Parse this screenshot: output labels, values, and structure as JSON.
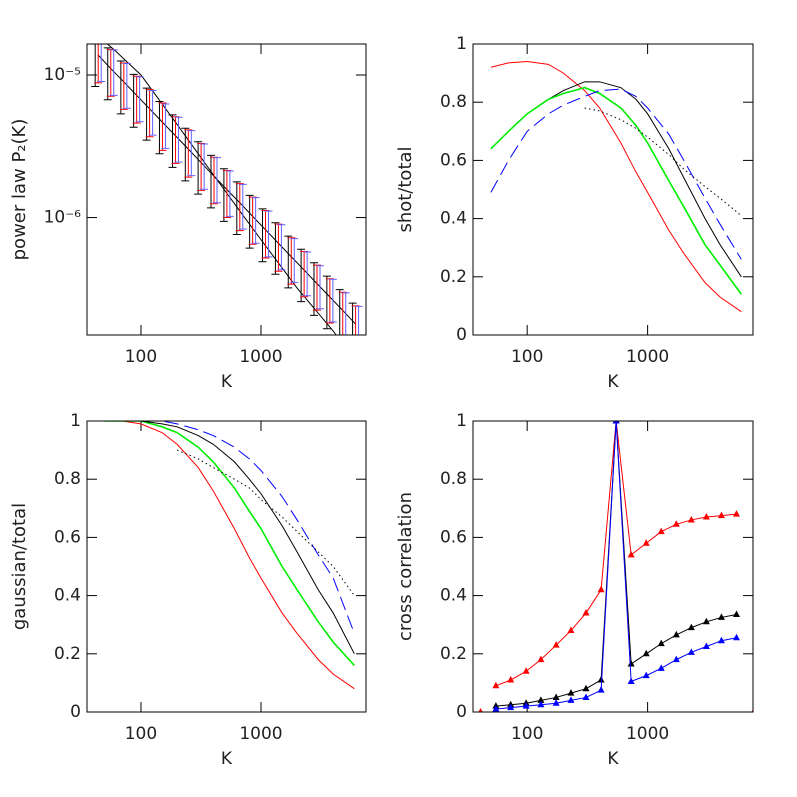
{
  "chart_data": [
    {
      "type": "line",
      "xlabel": "K",
      "ylabel": "power law P₂(K)",
      "xscale": "log",
      "yscale": "log",
      "xlim": [
        35.5,
        7500
      ],
      "ylim": [
        1.5e-07,
        1.65e-05
      ],
      "xticks": [
        100,
        1000
      ],
      "yticks": [
        {
          "value": 1e-05,
          "label": "10⁻⁵"
        },
        {
          "value": 1e-06,
          "label": "10⁻⁶"
        }
      ],
      "x": [
        44,
        56,
        72,
        92,
        118,
        151,
        194,
        248,
        317,
        406,
        520,
        666,
        852,
        1091,
        1397,
        1788,
        2288,
        2929,
        3749,
        4799,
        6143
      ],
      "series": [
        {
          "color": "#000000",
          "style": "line",
          "values": [
            1.38e-05,
            1.11e-05,
            8.94e-06,
            7.2e-06,
            5.79e-06,
            4.66e-06,
            3.75e-06,
            3.02e-06,
            2.43e-06,
            1.95e-06,
            1.57e-06,
            1.27e-06,
            1.02e-06,
            8.2e-07,
            6.6e-07,
            5.31e-07,
            4.28e-07,
            3.44e-07,
            2.77e-07,
            2.23e-07,
            1.79e-07
          ]
        },
        {
          "color": "#000000",
          "style": "line",
          "x": [
            40,
            60,
            100,
            200,
            400,
            700,
            1000,
            2000,
            4000,
            6000
          ],
          "values": [
            2e-05,
            1.5e-05,
            1e-05,
            4.5e-06,
            2e-06,
            1.05e-06,
            7e-07,
            3.2e-07,
            1.6e-07,
            1e-07
          ]
        },
        {
          "color": "#000000",
          "style": "errorbar",
          "values": [
            1.38e-05,
            1.11e-05,
            8.94e-06,
            7.2e-06,
            5.79e-06,
            4.66e-06,
            3.75e-06,
            3.02e-06,
            2.43e-06,
            1.95e-06,
            1.57e-06,
            1.27e-06,
            1.02e-06,
            8.2e-07,
            6.6e-07,
            5.31e-07,
            4.28e-07,
            3.44e-07,
            2.77e-07,
            2.23e-07,
            1.79e-07
          ],
          "yerr": [
            5.5e-06,
            4.4e-06,
            3.6e-06,
            2.9e-06,
            2.3e-06,
            1.86e-06,
            1.5e-06,
            1.21e-06,
            9.7e-07,
            7.8e-07,
            6.3e-07,
            5.1e-07,
            4.1e-07,
            3.3e-07,
            2.6e-07,
            2.1e-07,
            1.71e-07,
            1.38e-07,
            1.11e-07,
            8.9e-08,
            7.2e-08
          ]
        },
        {
          "color": "#ff0000",
          "style": "errorbar",
          "values": [
            1.38e-05,
            1.11e-05,
            8.94e-06,
            7.2e-06,
            5.79e-06,
            4.66e-06,
            3.75e-06,
            3.02e-06,
            2.43e-06,
            1.95e-06,
            1.57e-06,
            1.27e-06,
            1.02e-06,
            8.2e-07,
            6.6e-07,
            5.31e-07,
            4.28e-07,
            3.44e-07,
            2.77e-07,
            2.23e-07,
            1.79e-07
          ],
          "yerr": [
            5e-06,
            4e-06,
            3.2e-06,
            2.6e-06,
            2.1e-06,
            1.7e-06,
            1.35e-06,
            1.1e-06,
            8.8e-07,
            7e-07,
            5.7e-07,
            4.6e-07,
            3.7e-07,
            3e-07,
            2.4e-07,
            1.9e-07,
            1.5e-07,
            1.2e-07,
            9.5e-08,
            7.6e-08,
            6.1e-08
          ]
        },
        {
          "color": "#6060ff",
          "style": "errorbar",
          "values": [
            1.38e-05,
            1.11e-05,
            8.94e-06,
            7.2e-06,
            5.79e-06,
            4.66e-06,
            3.75e-06,
            3.02e-06,
            2.43e-06,
            1.95e-06,
            1.57e-06,
            1.27e-06,
            1.02e-06,
            8.2e-07,
            6.6e-07,
            5.31e-07,
            4.28e-07,
            3.44e-07,
            2.77e-07,
            2.23e-07,
            1.79e-07
          ],
          "yerr": [
            4.8e-06,
            3.9e-06,
            3.1e-06,
            2.5e-06,
            2e-06,
            1.6e-06,
            1.3e-06,
            1.05e-06,
            8.5e-07,
            6.8e-07,
            5.5e-07,
            4.4e-07,
            3.6e-07,
            2.9e-07,
            2.3e-07,
            1.8e-07,
            1.45e-07,
            1.15e-07,
            9.2e-08,
            7.3e-08,
            5.9e-08
          ]
        }
      ]
    },
    {
      "type": "line",
      "xlabel": "K",
      "ylabel": "shot/total",
      "xscale": "log",
      "yscale": "linear",
      "xlim": [
        35.5,
        7500
      ],
      "ylim": [
        0,
        1
      ],
      "xticks": [
        100,
        1000
      ],
      "yticks": [
        0,
        0.2,
        0.4,
        0.6,
        0.8,
        1
      ],
      "x": [
        50,
        70,
        100,
        150,
        200,
        300,
        400,
        600,
        800,
        1000,
        1500,
        2000,
        3000,
        4000,
        6000
      ],
      "series": [
        {
          "color": "#ff0000",
          "style": "line",
          "values": [
            0.92,
            0.935,
            0.94,
            0.93,
            0.9,
            0.84,
            0.78,
            0.66,
            0.56,
            0.49,
            0.36,
            0.28,
            0.18,
            0.13,
            0.08
          ]
        },
        {
          "color": "#000000",
          "style": "line",
          "values": [
            0.64,
            0.7,
            0.76,
            0.81,
            0.84,
            0.87,
            0.87,
            0.85,
            0.81,
            0.76,
            0.64,
            0.54,
            0.4,
            0.31,
            0.2
          ]
        },
        {
          "color": "#00ee00",
          "style": "line",
          "values": [
            0.64,
            0.7,
            0.76,
            0.81,
            0.83,
            0.85,
            0.83,
            0.78,
            0.72,
            0.66,
            0.53,
            0.44,
            0.31,
            0.24,
            0.14
          ]
        },
        {
          "color": "#0000ff",
          "style": "line",
          "dash": "dashed",
          "values": [
            0.49,
            0.6,
            0.7,
            0.76,
            0.79,
            0.82,
            0.84,
            0.845,
            0.82,
            0.78,
            0.69,
            0.6,
            0.47,
            0.38,
            0.26
          ]
        },
        {
          "color": "#000000",
          "style": "line",
          "dash": "dotted",
          "values": [
            null,
            null,
            null,
            null,
            null,
            0.78,
            0.77,
            0.74,
            0.71,
            0.68,
            0.62,
            0.57,
            0.51,
            0.47,
            0.41
          ]
        }
      ]
    },
    {
      "type": "line",
      "xlabel": "K",
      "ylabel": "gaussian/total",
      "xscale": "log",
      "yscale": "linear",
      "xlim": [
        35.5,
        7500
      ],
      "ylim": [
        0,
        1
      ],
      "xticks": [
        100,
        1000
      ],
      "yticks": [
        0,
        0.2,
        0.4,
        0.6,
        0.8,
        1
      ],
      "x": [
        50,
        70,
        100,
        150,
        200,
        300,
        400,
        600,
        800,
        1000,
        1500,
        2000,
        3000,
        4000,
        6000
      ],
      "series": [
        {
          "color": "#ff0000",
          "style": "line",
          "values": [
            1,
            1,
            0.99,
            0.96,
            0.92,
            0.84,
            0.76,
            0.63,
            0.53,
            0.46,
            0.34,
            0.27,
            0.18,
            0.13,
            0.08
          ]
        },
        {
          "color": "#00ee00",
          "style": "line",
          "values": [
            1,
            1,
            1,
            0.98,
            0.96,
            0.91,
            0.86,
            0.77,
            0.69,
            0.63,
            0.5,
            0.42,
            0.31,
            0.24,
            0.16
          ]
        },
        {
          "color": "#000000",
          "style": "line",
          "values": [
            1,
            1,
            1,
            0.99,
            0.98,
            0.95,
            0.92,
            0.86,
            0.8,
            0.75,
            0.64,
            0.55,
            0.42,
            0.34,
            0.2
          ]
        },
        {
          "color": "#0000ff",
          "style": "line",
          "dash": "dashed",
          "values": [
            1,
            1,
            1,
            1,
            0.99,
            0.97,
            0.95,
            0.91,
            0.87,
            0.83,
            0.74,
            0.66,
            0.54,
            0.46,
            0.27
          ]
        },
        {
          "color": "#000000",
          "style": "line",
          "dash": "dotted",
          "values": [
            null,
            null,
            null,
            null,
            0.9,
            0.87,
            0.84,
            0.8,
            0.77,
            0.73,
            0.67,
            0.62,
            0.55,
            0.5,
            0.4
          ]
        }
      ]
    },
    {
      "type": "line",
      "xlabel": "K",
      "ylabel": "cross correlation",
      "xscale": "log",
      "yscale": "linear",
      "xlim": [
        35.5,
        7500
      ],
      "ylim": [
        0,
        1
      ],
      "xticks": [
        100,
        1000
      ],
      "yticks": [
        0,
        0.2,
        0.4,
        0.6,
        0.8,
        1
      ],
      "x": [
        55,
        73,
        98,
        130,
        174,
        231,
        308,
        411,
        548,
        730,
        974,
        1298,
        1731,
        2308,
        3077,
        4102,
        5469
      ],
      "series": [
        {
          "color": "#ff0000",
          "style": "line+markers",
          "values": [
            0.09,
            0.11,
            0.14,
            0.18,
            0.23,
            0.28,
            0.34,
            0.42,
            1.0,
            0.54,
            0.58,
            0.62,
            0.645,
            0.66,
            0.67,
            0.675,
            0.68
          ]
        },
        {
          "color": "#000000",
          "style": "line+markers",
          "values": [
            0.02,
            0.025,
            0.03,
            0.04,
            0.05,
            0.065,
            0.08,
            0.11,
            1.0,
            0.165,
            0.2,
            0.235,
            0.265,
            0.29,
            0.31,
            0.325,
            0.335
          ]
        },
        {
          "color": "#0000ff",
          "style": "line+markers",
          "values": [
            0.01,
            0.015,
            0.02,
            0.025,
            0.03,
            0.04,
            0.05,
            0.075,
            1.0,
            0.105,
            0.125,
            0.15,
            0.18,
            0.205,
            0.225,
            0.245,
            0.255
          ]
        },
        {
          "color": "#ff0000",
          "style": "markers",
          "x": [
            41,
            7600
          ],
          "values": [
            0,
            0
          ]
        }
      ]
    }
  ]
}
